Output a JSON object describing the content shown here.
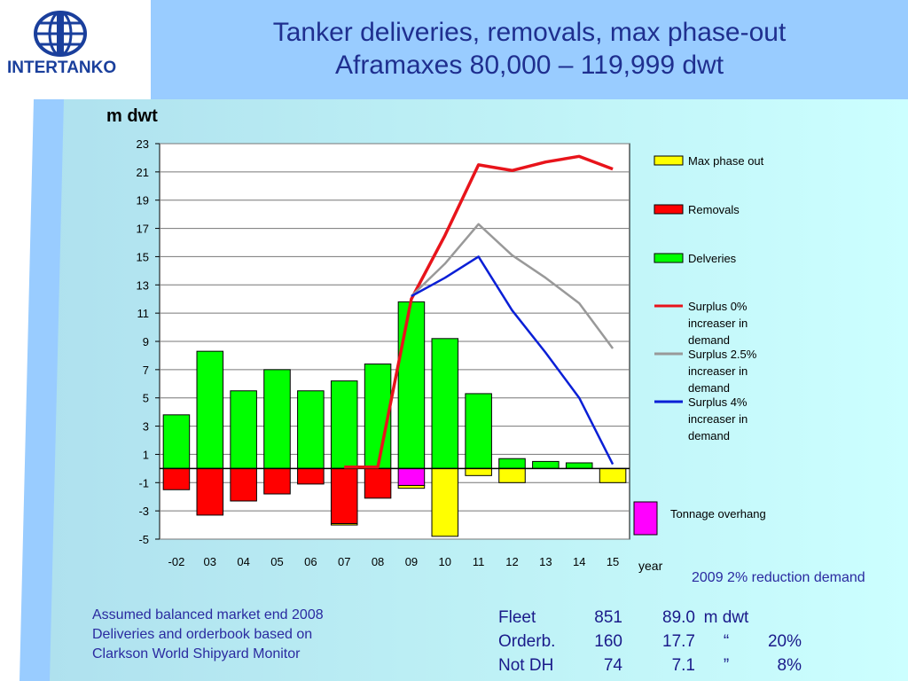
{
  "header": {
    "logo_text": "INTERTANKO",
    "title_line1": "Tanker deliveries, removals, max phase-out",
    "title_line2": "Aframaxes   80,000 – 119,999 dwt"
  },
  "colors": {
    "header_bg": "#99ccff",
    "chart_bg_light": "#ccffff",
    "deliveries": "#00ff00",
    "removals": "#ff0000",
    "max_phase_out": "#ffff00",
    "tonnage_overhang": "#ff00ff",
    "surplus_0": "#e8141b",
    "surplus_2_5": "#999999",
    "surplus_4": "#0a1fd6"
  },
  "chart_data": {
    "type": "bar",
    "ylabel": "m dwt",
    "xlabel": "year",
    "ylim": [
      -5,
      23
    ],
    "yticks": [
      23,
      21,
      19,
      17,
      15,
      13,
      11,
      9,
      7,
      5,
      3,
      1,
      -1,
      -3,
      -5
    ],
    "categories": [
      "-02",
      "03",
      "04",
      "05",
      "06",
      "07",
      "08",
      "09",
      "10",
      "11",
      "12",
      "13",
      "14",
      "15"
    ],
    "grid": true,
    "legend_position": "right",
    "bar_series": [
      {
        "name": "Max phase out",
        "values": [
          0,
          0,
          0,
          0,
          0,
          -0.1,
          0,
          -0.2,
          -4.8,
          -0.5,
          -1.0,
          0,
          0,
          -1.0
        ]
      },
      {
        "name": "Removals",
        "values": [
          -1.5,
          -3.3,
          -2.3,
          -1.8,
          -1.1,
          -3.9,
          -2.1,
          0,
          0,
          0,
          0,
          0,
          0,
          0
        ]
      },
      {
        "name": "Delveries",
        "values": [
          3.8,
          8.3,
          5.5,
          7.0,
          5.5,
          6.2,
          7.4,
          11.8,
          9.2,
          5.3,
          0.7,
          0.5,
          0.4,
          0
        ]
      },
      {
        "name": "Tonnage overhang",
        "values": [
          0,
          0,
          0,
          0,
          0,
          0,
          0,
          -1.2,
          0,
          0,
          0,
          0,
          0,
          0
        ]
      }
    ],
    "line_series": [
      {
        "name": "Surplus 0% increaser in demand",
        "x": [
          "07",
          "08",
          "09",
          "10",
          "11",
          "12",
          "13",
          "14",
          "15"
        ],
        "values": [
          0.1,
          0.1,
          12.0,
          16.5,
          21.5,
          21.1,
          21.7,
          22.1,
          21.2
        ]
      },
      {
        "name": "Surplus 2.5% increaser in demand",
        "x": [
          "09",
          "10",
          "11",
          "12",
          "13",
          "14",
          "15"
        ],
        "values": [
          12.2,
          14.5,
          17.3,
          15.1,
          13.5,
          11.7,
          8.5
        ]
      },
      {
        "name": "Surplus 4% increaser in demand",
        "x": [
          "09",
          "10",
          "11",
          "12",
          "13",
          "14",
          "15"
        ],
        "values": [
          12.2,
          13.5,
          15.0,
          11.2,
          8.2,
          5.0,
          0.3
        ]
      }
    ],
    "legend": [
      {
        "kind": "box",
        "color_key": "max_phase_out",
        "lines": [
          "Max phase out"
        ]
      },
      {
        "kind": "box",
        "color_key": "removals",
        "lines": [
          "Removals"
        ]
      },
      {
        "kind": "box",
        "color_key": "deliveries",
        "lines": [
          "Delveries"
        ]
      },
      {
        "kind": "line",
        "color_key": "surplus_0",
        "lines": [
          "Surplus 0%",
          "increaser in",
          "demand"
        ]
      },
      {
        "kind": "line",
        "color_key": "surplus_2_5",
        "lines": [
          "Surplus 2.5%",
          "increaser in",
          "demand"
        ]
      },
      {
        "kind": "line",
        "color_key": "surplus_4",
        "lines": [
          "Surplus 4%",
          "increaser in",
          "demand"
        ]
      }
    ],
    "overhang_label": "Tonnage overhang"
  },
  "notes": {
    "reduction": "2009 2% reduction demand",
    "assumptions": [
      "Assumed balanced market end 2008",
      "Deliveries and orderbook based on",
      "Clarkson World Shipyard Monitor"
    ]
  },
  "fleet_table": [
    [
      "Fleet",
      "851",
      "89.0",
      "m dwt",
      ""
    ],
    [
      "Orderb.",
      "160",
      "17.7",
      "“",
      "20%"
    ],
    [
      "Not DH",
      "74",
      "7.1",
      "”",
      "8%"
    ]
  ]
}
